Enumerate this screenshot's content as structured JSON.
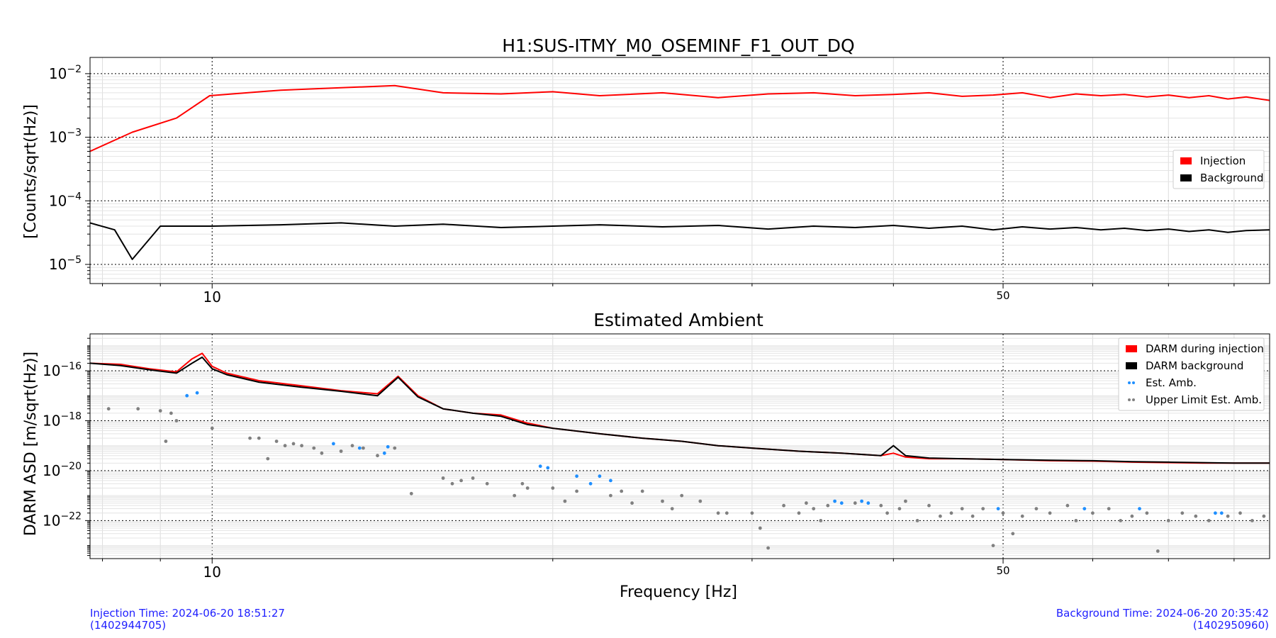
{
  "figure": {
    "xlabel": "Frequency [Hz]",
    "injection_time_line1": "Injection Time: 2024-06-20 18:51:27",
    "injection_time_line2": "(1402944705)",
    "background_time_line1": "Background Time: 2024-06-20 20:35:42",
    "background_time_line2": "(1402950960)"
  },
  "chart_data": [
    {
      "type": "line",
      "title": "H1:SUS-ITMY_M0_OSEMINF_F1_OUT_DQ",
      "xlabel": "",
      "ylabel": "[Counts/sqrt(Hz)]",
      "xscale": "log",
      "yscale": "log",
      "xlim": [
        7.8,
        86
      ],
      "ylim": [
        5e-06,
        0.018
      ],
      "x_ticks": [
        10,
        50
      ],
      "x_tick_labels": [
        "10",
        "50"
      ],
      "y_ticks": [
        1e-05,
        0.0001,
        0.001,
        0.01
      ],
      "y_tick_labels": [
        "10−5",
        "10−4",
        "10−3",
        "10−2"
      ],
      "grid": true,
      "legend_position": "right",
      "series": [
        {
          "name": "Injection",
          "color": "#ff0000",
          "x": [
            7.8,
            8.5,
            9.3,
            9.95,
            11.5,
            13,
            14.5,
            16,
            18,
            20,
            22,
            25,
            28,
            31,
            34,
            37,
            40,
            43,
            46,
            49,
            52,
            55,
            58,
            61,
            64,
            67,
            70,
            73,
            76,
            79,
            82,
            86
          ],
          "values": [
            0.0006,
            0.0012,
            0.002,
            0.0045,
            0.0055,
            0.006,
            0.0065,
            0.005,
            0.0048,
            0.0052,
            0.0045,
            0.005,
            0.0042,
            0.0048,
            0.005,
            0.0045,
            0.0047,
            0.005,
            0.0044,
            0.0046,
            0.005,
            0.0042,
            0.0048,
            0.0045,
            0.0047,
            0.0043,
            0.0046,
            0.0042,
            0.0045,
            0.004,
            0.0043,
            0.0038
          ]
        },
        {
          "name": "Background",
          "color": "#000000",
          "x": [
            7.8,
            8.2,
            8.5,
            9.0,
            10,
            11.5,
            13,
            14.5,
            16,
            18,
            20,
            22,
            25,
            28,
            31,
            34,
            37,
            40,
            43,
            46,
            49,
            52,
            55,
            58,
            61,
            64,
            67,
            70,
            73,
            76,
            79,
            82,
            86
          ],
          "values": [
            4.5e-05,
            3.5e-05,
            1.2e-05,
            4e-05,
            4e-05,
            4.2e-05,
            4.5e-05,
            4e-05,
            4.3e-05,
            3.8e-05,
            4e-05,
            4.2e-05,
            3.9e-05,
            4.1e-05,
            3.6e-05,
            4e-05,
            3.8e-05,
            4.1e-05,
            3.7e-05,
            4e-05,
            3.5e-05,
            3.9e-05,
            3.6e-05,
            3.8e-05,
            3.5e-05,
            3.7e-05,
            3.4e-05,
            3.6e-05,
            3.3e-05,
            3.5e-05,
            3.2e-05,
            3.4e-05,
            3.5e-05
          ]
        }
      ]
    },
    {
      "type": "line",
      "title": "Estimated Ambient",
      "xlabel": "Frequency [Hz]",
      "ylabel": "DARM ASD [m/sqrt(Hz)]",
      "xscale": "log",
      "yscale": "log",
      "xlim": [
        7.8,
        86
      ],
      "ylim": [
        3e-24,
        3e-15
      ],
      "x_ticks": [
        10,
        50
      ],
      "x_tick_labels": [
        "10",
        "50"
      ],
      "y_ticks": [
        1e-22,
        1e-20,
        1e-18,
        1e-16
      ],
      "y_tick_labels": [
        "10−22",
        "10−20",
        "10−18",
        "10−16"
      ],
      "grid": true,
      "legend_position": "top-right",
      "series": [
        {
          "name": "DARM during injection",
          "color": "#ff0000",
          "kind": "line",
          "x": [
            7.8,
            8.3,
            8.8,
            9.3,
            9.6,
            9.8,
            10,
            10.3,
            11,
            12,
            13,
            14,
            14.6,
            15.2,
            16,
            17,
            18,
            19,
            20,
            22,
            24,
            26,
            28,
            30,
            33,
            36,
            39,
            40,
            41,
            43,
            46,
            50,
            55,
            60,
            65,
            70,
            75,
            80,
            86
          ],
          "values": [
            2e-16,
            1.8e-16,
            1.2e-16,
            9e-17,
            3e-16,
            5e-16,
            1.5e-16,
            8e-17,
            4e-17,
            2.5e-17,
            1.6e-17,
            1.2e-17,
            6e-17,
            1e-17,
            3e-18,
            2e-18,
            1.7e-18,
            8e-19,
            5e-19,
            3e-19,
            2e-19,
            1.5e-19,
            1e-19,
            8e-20,
            6e-20,
            5e-20,
            4e-20,
            5e-20,
            3.5e-20,
            3e-20,
            3e-20,
            2.8e-20,
            2.5e-20,
            2.4e-20,
            2.2e-20,
            2.1e-20,
            2e-20,
            2e-20,
            2e-20
          ]
        },
        {
          "name": "DARM background",
          "color": "#000000",
          "kind": "line",
          "x": [
            7.8,
            8.3,
            8.8,
            9.3,
            9.6,
            9.8,
            10,
            10.3,
            11,
            12,
            13,
            14,
            14.6,
            15.2,
            16,
            17,
            18,
            19,
            20,
            22,
            24,
            26,
            28,
            30,
            33,
            36,
            39,
            40,
            41,
            43,
            46,
            50,
            55,
            60,
            65,
            70,
            75,
            80,
            86
          ],
          "values": [
            2e-16,
            1.6e-16,
            1.1e-16,
            8e-17,
            2e-16,
            3.5e-16,
            1.2e-16,
            7e-17,
            3.5e-17,
            2.2e-17,
            1.5e-17,
            1e-17,
            5.5e-17,
            9e-18,
            3e-18,
            2e-18,
            1.5e-18,
            7e-19,
            5e-19,
            3e-19,
            2e-19,
            1.5e-19,
            1e-19,
            8e-20,
            6e-20,
            5e-20,
            4e-20,
            1e-19,
            4e-20,
            3.2e-20,
            3e-20,
            2.8e-20,
            2.6e-20,
            2.5e-20,
            2.3e-20,
            2.2e-20,
            2.1e-20,
            2e-20,
            2e-20
          ]
        },
        {
          "name": "Est. Amb.",
          "color": "#1f8fff",
          "kind": "points",
          "x": [
            9.5,
            9.7,
            12.8,
            13.5,
            14.2,
            14.3,
            19.5,
            19.8,
            21.0,
            21.6,
            22.0,
            22.5,
            35.5,
            36.0,
            37.5,
            38.0,
            49.5,
            59.0,
            66.0,
            77.0,
            78.0
          ],
          "values": [
            1e-17,
            1.3e-17,
            1.2e-19,
            8e-20,
            5e-20,
            9e-20,
            1.5e-20,
            1.3e-20,
            6e-21,
            3e-21,
            6e-21,
            4e-21,
            6e-22,
            5e-22,
            6e-22,
            5e-22,
            3e-22,
            3e-22,
            3e-22,
            2e-22,
            2e-22
          ]
        },
        {
          "name": "Upper Limit Est. Amb.",
          "color": "#808080",
          "kind": "points",
          "x": [
            8.1,
            8.6,
            9.0,
            9.1,
            9.2,
            9.3,
            10.0,
            10.8,
            11.0,
            11.2,
            11.4,
            11.6,
            11.8,
            12.0,
            12.3,
            12.5,
            13.0,
            13.3,
            13.6,
            14.0,
            14.5,
            15.0,
            16.0,
            16.3,
            16.6,
            17.0,
            17.5,
            18.5,
            18.8,
            19.0,
            20.0,
            20.5,
            21.0,
            22.5,
            23.0,
            23.5,
            24.0,
            25.0,
            25.5,
            26.0,
            27.0,
            28.0,
            28.5,
            30.0,
            30.5,
            31.0,
            32.0,
            33.0,
            33.5,
            34.0,
            34.5,
            35.0,
            37.0,
            39.0,
            39.5,
            40.5,
            41.0,
            42.0,
            43.0,
            44.0,
            45.0,
            46.0,
            47.0,
            48.0,
            49.0,
            50.0,
            51.0,
            52.0,
            53.5,
            55.0,
            57.0,
            58.0,
            60.0,
            62.0,
            63.5,
            65.0,
            67.0,
            68.5,
            70.0,
            72.0,
            74.0,
            76.0,
            79.0,
            81.0,
            83.0,
            85.0
          ],
          "values": [
            3e-18,
            3e-18,
            2.5e-18,
            1.5e-19,
            2e-18,
            1e-18,
            5e-19,
            2e-19,
            2e-19,
            3e-20,
            1.5e-19,
            1e-19,
            1.2e-19,
            1e-19,
            8e-20,
            5e-20,
            6e-20,
            1e-19,
            8e-20,
            4e-20,
            8e-20,
            1.2e-21,
            5e-21,
            3e-21,
            4e-21,
            5e-21,
            3e-21,
            1e-21,
            3e-21,
            2e-21,
            2e-21,
            6e-22,
            1.5e-21,
            1e-21,
            1.5e-21,
            5e-22,
            1.5e-21,
            6e-22,
            3e-22,
            1e-21,
            6e-22,
            2e-22,
            2e-22,
            2e-22,
            5e-23,
            8e-24,
            4e-22,
            2e-22,
            5e-22,
            3e-22,
            1e-22,
            4e-22,
            5e-22,
            4e-22,
            2e-22,
            3e-22,
            6e-22,
            1e-22,
            4e-22,
            1.5e-22,
            2e-22,
            3e-22,
            1.5e-22,
            3e-22,
            1e-23,
            2e-22,
            3e-23,
            1.5e-22,
            3e-22,
            2e-22,
            4e-22,
            1e-22,
            2e-22,
            3e-22,
            1e-22,
            1.5e-22,
            2e-22,
            6e-24,
            1e-22,
            2e-22,
            1.5e-22,
            1e-22,
            1.5e-22,
            2e-22,
            1e-22,
            1.5e-22
          ]
        }
      ]
    }
  ]
}
